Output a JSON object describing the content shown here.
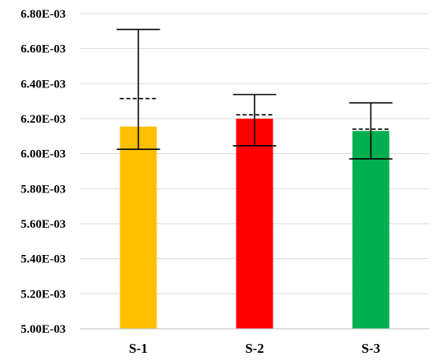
{
  "chart_data": {
    "type": "bar",
    "title": "",
    "xlabel": "",
    "ylabel": "",
    "ylim": [
      0.005,
      0.0068
    ],
    "y_ticks": [
      0.005,
      0.0052,
      0.0054,
      0.0056,
      0.0058,
      0.006,
      0.0062,
      0.0064,
      0.0066,
      0.0068
    ],
    "y_tick_labels": [
      "5.00E-03",
      "5.20E-03",
      "5.40E-03",
      "5.60E-03",
      "5.80E-03",
      "6.00E-03",
      "6.20E-03",
      "6.40E-03",
      "6.60E-03",
      "6.80E-03"
    ],
    "grid": true,
    "categories": [
      "S-1",
      "S-2",
      "S-3"
    ],
    "values": [
      0.006155,
      0.0062,
      0.00613
    ],
    "error_low": [
      0.006025,
      0.006045,
      0.00597
    ],
    "error_high": [
      0.00671,
      0.006338,
      0.00629
    ],
    "dashed_mean": [
      0.006315,
      0.006222,
      0.00614
    ],
    "colors": [
      "#FFC000",
      "#FF0000",
      "#00B050"
    ]
  }
}
